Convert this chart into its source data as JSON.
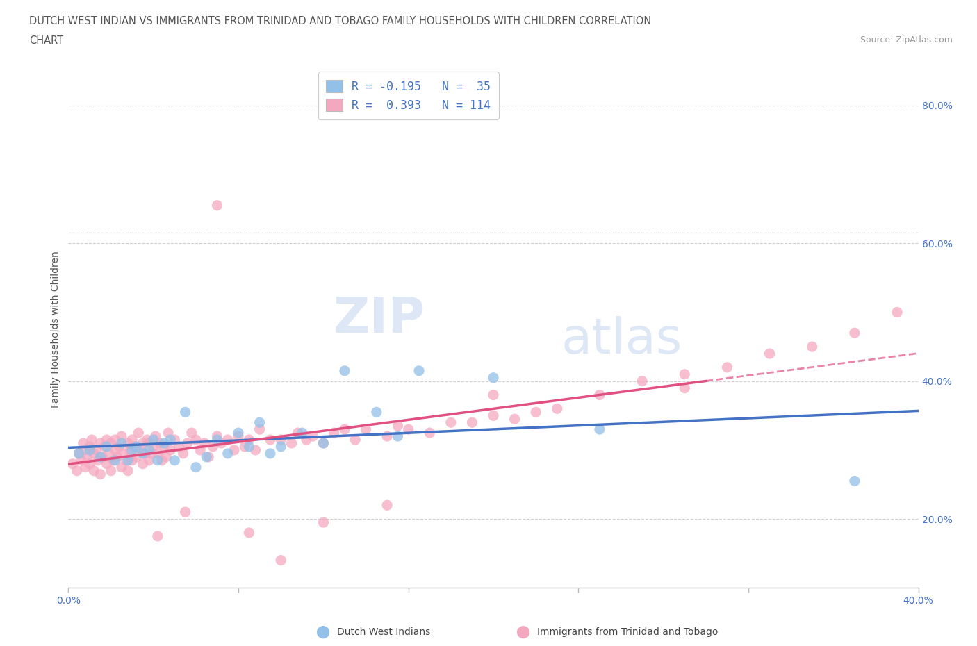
{
  "title_line1": "DUTCH WEST INDIAN VS IMMIGRANTS FROM TRINIDAD AND TOBAGO FAMILY HOUSEHOLDS WITH CHILDREN CORRELATION",
  "title_line2": "CHART",
  "source": "Source: ZipAtlas.com",
  "ylabel": "Family Households with Children",
  "xlim": [
    0.0,
    0.4
  ],
  "ylim": [
    0.1,
    0.85
  ],
  "ytick_positions": [
    0.2,
    0.4,
    0.6,
    0.8
  ],
  "blue_color": "#92c0e8",
  "pink_color": "#f4a8c0",
  "blue_line_color": "#4472c4",
  "pink_line_color": "#e05080",
  "blue_scatter_x": [
    0.005,
    0.01,
    0.015,
    0.018,
    0.022,
    0.025,
    0.028,
    0.03,
    0.032,
    0.035,
    0.038,
    0.04,
    0.042,
    0.045,
    0.048,
    0.05,
    0.055,
    0.06,
    0.065,
    0.07,
    0.075,
    0.08,
    0.085,
    0.09,
    0.095,
    0.1,
    0.11,
    0.12,
    0.13,
    0.145,
    0.155,
    0.165,
    0.2,
    0.25,
    0.37
  ],
  "blue_scatter_y": [
    0.295,
    0.3,
    0.29,
    0.305,
    0.285,
    0.31,
    0.285,
    0.3,
    0.305,
    0.295,
    0.3,
    0.315,
    0.285,
    0.31,
    0.315,
    0.285,
    0.355,
    0.275,
    0.29,
    0.315,
    0.295,
    0.325,
    0.305,
    0.34,
    0.295,
    0.305,
    0.325,
    0.31,
    0.415,
    0.355,
    0.32,
    0.415,
    0.405,
    0.33,
    0.255
  ],
  "pink_scatter_x": [
    0.002,
    0.004,
    0.005,
    0.006,
    0.007,
    0.008,
    0.008,
    0.009,
    0.01,
    0.01,
    0.011,
    0.012,
    0.012,
    0.013,
    0.014,
    0.015,
    0.015,
    0.016,
    0.017,
    0.018,
    0.018,
    0.019,
    0.02,
    0.02,
    0.021,
    0.022,
    0.022,
    0.023,
    0.024,
    0.025,
    0.025,
    0.026,
    0.027,
    0.028,
    0.028,
    0.029,
    0.03,
    0.03,
    0.031,
    0.032,
    0.033,
    0.034,
    0.035,
    0.035,
    0.036,
    0.037,
    0.038,
    0.038,
    0.039,
    0.04,
    0.041,
    0.042,
    0.043,
    0.044,
    0.045,
    0.046,
    0.047,
    0.048,
    0.05,
    0.052,
    0.054,
    0.056,
    0.058,
    0.06,
    0.062,
    0.064,
    0.066,
    0.068,
    0.07,
    0.072,
    0.075,
    0.078,
    0.08,
    0.083,
    0.085,
    0.088,
    0.09,
    0.095,
    0.1,
    0.105,
    0.108,
    0.112,
    0.115,
    0.12,
    0.125,
    0.13,
    0.135,
    0.14,
    0.15,
    0.155,
    0.16,
    0.17,
    0.18,
    0.19,
    0.2,
    0.21,
    0.22,
    0.23,
    0.25,
    0.27,
    0.29,
    0.31,
    0.33,
    0.35,
    0.37,
    0.39,
    0.29,
    0.2,
    0.15,
    0.12,
    0.1,
    0.085,
    0.07,
    0.055,
    0.042
  ],
  "pink_scatter_y": [
    0.28,
    0.27,
    0.295,
    0.285,
    0.31,
    0.275,
    0.3,
    0.29,
    0.305,
    0.28,
    0.315,
    0.295,
    0.27,
    0.3,
    0.285,
    0.31,
    0.265,
    0.29,
    0.305,
    0.28,
    0.315,
    0.295,
    0.31,
    0.27,
    0.285,
    0.3,
    0.315,
    0.29,
    0.305,
    0.275,
    0.32,
    0.295,
    0.285,
    0.31,
    0.27,
    0.3,
    0.315,
    0.285,
    0.305,
    0.29,
    0.325,
    0.3,
    0.31,
    0.28,
    0.295,
    0.315,
    0.285,
    0.31,
    0.295,
    0.305,
    0.32,
    0.295,
    0.31,
    0.285,
    0.305,
    0.29,
    0.325,
    0.3,
    0.315,
    0.305,
    0.295,
    0.31,
    0.325,
    0.315,
    0.3,
    0.31,
    0.29,
    0.305,
    0.32,
    0.31,
    0.315,
    0.3,
    0.32,
    0.305,
    0.315,
    0.3,
    0.33,
    0.315,
    0.315,
    0.31,
    0.325,
    0.315,
    0.32,
    0.31,
    0.325,
    0.33,
    0.315,
    0.33,
    0.32,
    0.335,
    0.33,
    0.325,
    0.34,
    0.34,
    0.35,
    0.345,
    0.355,
    0.36,
    0.38,
    0.4,
    0.41,
    0.42,
    0.44,
    0.45,
    0.47,
    0.5,
    0.39,
    0.38,
    0.22,
    0.195,
    0.14,
    0.18,
    0.655,
    0.21,
    0.175
  ],
  "watermark_zip": "ZIP",
  "watermark_atlas": "atlas",
  "grid_color": "#d0d0d0",
  "bg_color": "#ffffff",
  "dashed_line_y": 0.615
}
